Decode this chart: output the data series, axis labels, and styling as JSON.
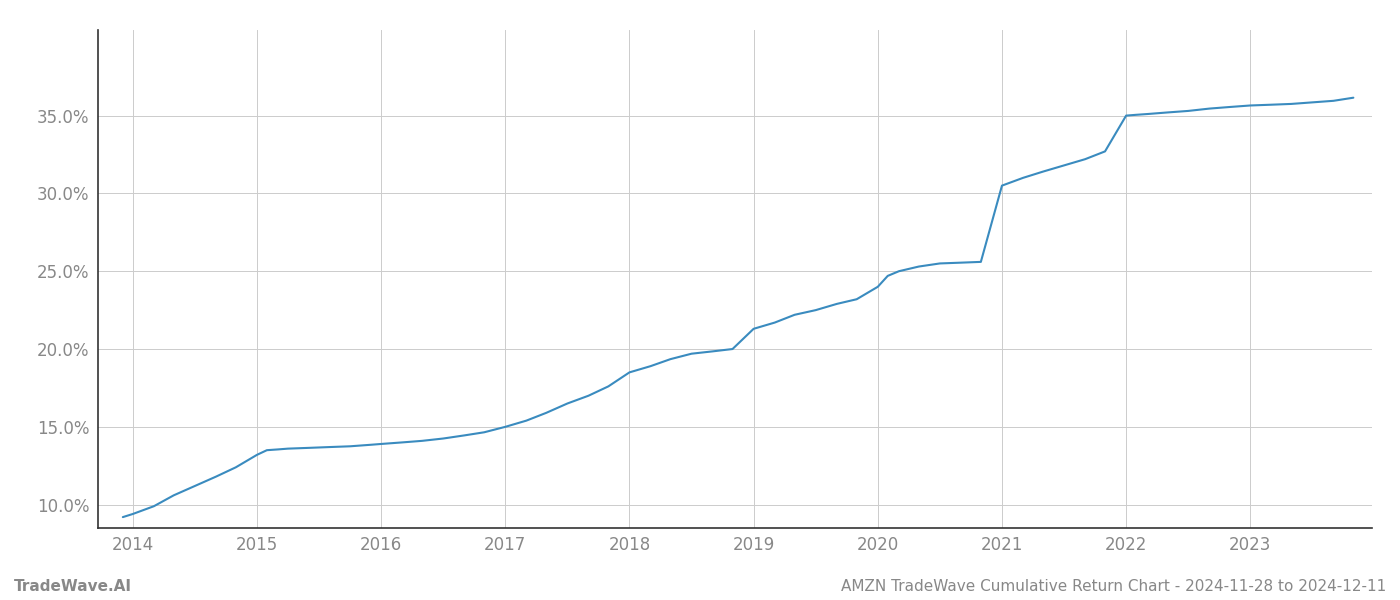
{
  "x_values": [
    2013.92,
    2014.0,
    2014.17,
    2014.33,
    2014.5,
    2014.67,
    2014.83,
    2015.0,
    2015.08,
    2015.17,
    2015.25,
    2015.42,
    2015.58,
    2015.75,
    2015.92,
    2016.0,
    2016.17,
    2016.33,
    2016.5,
    2016.67,
    2016.83,
    2017.0,
    2017.17,
    2017.33,
    2017.5,
    2017.67,
    2017.83,
    2018.0,
    2018.17,
    2018.33,
    2018.5,
    2018.67,
    2018.83,
    2019.0,
    2019.17,
    2019.33,
    2019.5,
    2019.67,
    2019.83,
    2020.0,
    2020.08,
    2020.17,
    2020.33,
    2020.5,
    2020.67,
    2020.83,
    2021.0,
    2021.17,
    2021.33,
    2021.5,
    2021.67,
    2021.83,
    2022.0,
    2022.08,
    2022.17,
    2022.33,
    2022.5,
    2022.67,
    2022.83,
    2023.0,
    2023.17,
    2023.33,
    2023.5,
    2023.67,
    2023.83
  ],
  "y_values": [
    9.2,
    9.4,
    9.9,
    10.6,
    11.2,
    11.8,
    12.4,
    13.2,
    13.5,
    13.55,
    13.6,
    13.65,
    13.7,
    13.75,
    13.85,
    13.9,
    14.0,
    14.1,
    14.25,
    14.45,
    14.65,
    15.0,
    15.4,
    15.9,
    16.5,
    17.0,
    17.6,
    18.5,
    18.9,
    19.35,
    19.7,
    19.85,
    20.0,
    21.3,
    21.7,
    22.2,
    22.5,
    22.9,
    23.2,
    24.0,
    24.7,
    25.0,
    25.3,
    25.5,
    25.55,
    25.6,
    30.5,
    31.0,
    31.4,
    31.8,
    32.2,
    32.7,
    35.0,
    35.05,
    35.1,
    35.2,
    35.3,
    35.45,
    35.55,
    35.65,
    35.7,
    35.75,
    35.85,
    35.95,
    36.15
  ],
  "line_color": "#3a8bbf",
  "line_width": 1.5,
  "background_color": "#ffffff",
  "grid_color": "#cccccc",
  "x_tick_labels": [
    "2014",
    "2015",
    "2016",
    "2017",
    "2018",
    "2019",
    "2020",
    "2021",
    "2022",
    "2023"
  ],
  "x_tick_positions": [
    2014,
    2015,
    2016,
    2017,
    2018,
    2019,
    2020,
    2021,
    2022,
    2023
  ],
  "y_tick_labels": [
    "10.0%",
    "15.0%",
    "20.0%",
    "25.0%",
    "30.0%",
    "35.0%"
  ],
  "y_tick_values": [
    10.0,
    15.0,
    20.0,
    25.0,
    30.0,
    35.0
  ],
  "ylim": [
    8.5,
    40.5
  ],
  "xlim": [
    2013.72,
    2023.98
  ],
  "footer_left": "TradeWave.AI",
  "footer_right": "AMZN TradeWave Cumulative Return Chart - 2024-11-28 to 2024-12-11",
  "tick_label_color": "#888888",
  "footer_color": "#888888",
  "footer_fontsize": 11,
  "left_spine_color": "#333333"
}
